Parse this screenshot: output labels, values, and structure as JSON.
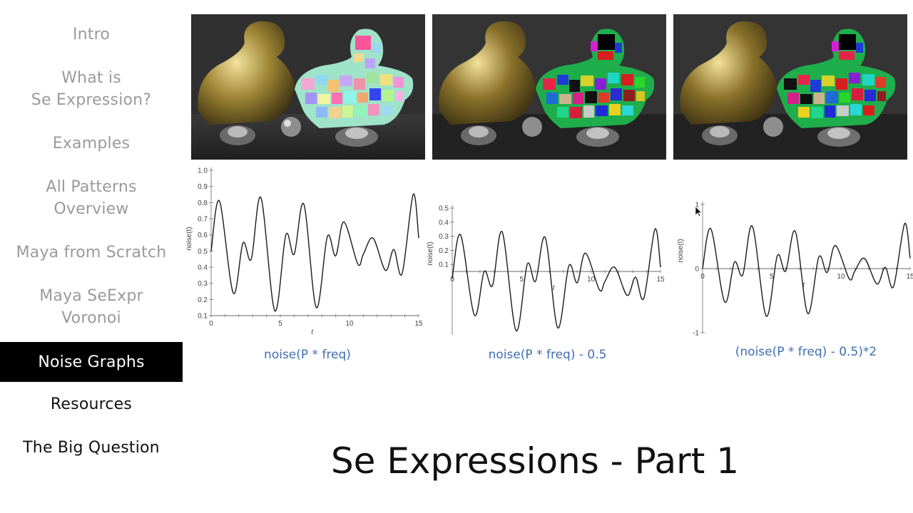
{
  "sidebar": {
    "items": [
      {
        "label_lines": [
          "Intro"
        ],
        "state": "visited"
      },
      {
        "label_lines": [
          "What is",
          "Se Expression?"
        ],
        "state": "visited"
      },
      {
        "label_lines": [
          "Examples"
        ],
        "state": "visited"
      },
      {
        "label_lines": [
          "All Patterns",
          "Overview"
        ],
        "state": "visited"
      },
      {
        "label_lines": [
          "Maya from Scratch"
        ],
        "state": "visited"
      },
      {
        "label_lines": [
          "Maya SeExpr",
          "Voronoi"
        ],
        "state": "visited"
      },
      {
        "label_lines": [
          "Noise Graphs"
        ],
        "state": "active"
      },
      {
        "label_lines": [
          "Resources"
        ],
        "state": "upcoming"
      },
      {
        "label_lines": [
          "The Big Question"
        ],
        "state": "upcoming"
      }
    ],
    "active_bg": "#000000",
    "visited_color": "#9a9a9a",
    "upcoming_color": "#111111"
  },
  "renders": [
    {
      "name": "render-pastel-voronoi",
      "description": "gold bust beside pastel voronoi-textured bust"
    },
    {
      "name": "render-saturated-voronoi-1",
      "description": "gold bust beside saturated voronoi-textured bust"
    },
    {
      "name": "render-saturated-voronoi-2",
      "description": "gold bust beside saturated voronoi-textured bust"
    }
  ],
  "captions": [
    "noise(P * freq)",
    "noise(P * freq) - 0.5",
    "(noise(P * freq) - 0.5)*2"
  ],
  "page_title": "Se Expressions - Part 1",
  "accent_color": "#3f6fb3",
  "chart_data": [
    {
      "type": "line",
      "title": "noise(P * freq)",
      "xlabel": "t",
      "ylabel": "noise(t)",
      "xlim": [
        0,
        15
      ],
      "ylim": [
        0.1,
        1.0
      ],
      "xticks": [
        "0",
        "5",
        "10",
        "15"
      ],
      "yticks": [
        "0.1",
        "0.2",
        "0.3",
        "0.4",
        "0.5",
        "0.6",
        "0.7",
        "0.8",
        "0.9",
        "1.0"
      ],
      "grid": false,
      "x": [
        0,
        0.6,
        1.6,
        2.3,
        2.9,
        3.6,
        4.6,
        5.4,
        6.0,
        6.7,
        7.6,
        8.4,
        9.0,
        9.6,
        10.6,
        11.0,
        11.7,
        12.6,
        13.2,
        13.8,
        14.6,
        15
      ],
      "values": [
        0.5,
        0.81,
        0.24,
        0.55,
        0.45,
        0.83,
        0.13,
        0.6,
        0.48,
        0.79,
        0.15,
        0.59,
        0.47,
        0.68,
        0.42,
        0.48,
        0.58,
        0.38,
        0.51,
        0.36,
        0.85,
        0.58
      ]
    },
    {
      "type": "line",
      "title": "noise(P * freq) - 0.5",
      "xlabel": "t",
      "ylabel": "noise(t)",
      "xlim": [
        0,
        15
      ],
      "ylim": [
        -0.4,
        0.5
      ],
      "xticks": [
        "0",
        "5",
        "10",
        "15"
      ],
      "yticks": [
        "0.1",
        "0.2",
        "0.3",
        "0.4",
        "0.5"
      ],
      "grid": false,
      "x": [
        0,
        0.6,
        1.6,
        2.3,
        2.9,
        3.6,
        4.6,
        5.4,
        6.0,
        6.7,
        7.6,
        8.4,
        9.0,
        9.6,
        10.6,
        11.0,
        11.7,
        12.6,
        13.2,
        13.8,
        14.6,
        15
      ],
      "values": [
        0.0,
        0.31,
        -0.26,
        0.05,
        -0.05,
        0.33,
        -0.37,
        0.1,
        -0.02,
        0.29,
        -0.35,
        0.09,
        -0.03,
        0.18,
        -0.08,
        -0.02,
        0.08,
        -0.12,
        0.01,
        -0.14,
        0.35,
        0.08
      ]
    },
    {
      "type": "line",
      "title": "(noise(P * freq) - 0.5)*2",
      "xlabel": "t",
      "ylabel": "noise(t)",
      "xlim": [
        0,
        15
      ],
      "ylim": [
        -1,
        1
      ],
      "xticks": [
        "0",
        "5",
        "10",
        "15"
      ],
      "yticks": [
        "-1",
        "0",
        "1"
      ],
      "grid": false,
      "x": [
        0,
        0.6,
        1.6,
        2.3,
        2.9,
        3.6,
        4.6,
        5.4,
        6.0,
        6.7,
        7.6,
        8.4,
        9.0,
        9.6,
        10.6,
        11.0,
        11.7,
        12.6,
        13.2,
        13.8,
        14.6,
        15
      ],
      "values": [
        0.0,
        0.62,
        -0.52,
        0.1,
        -0.1,
        0.66,
        -0.74,
        0.2,
        -0.04,
        0.58,
        -0.7,
        0.18,
        -0.06,
        0.36,
        -0.16,
        -0.04,
        0.16,
        -0.24,
        0.02,
        -0.28,
        0.7,
        0.16
      ]
    }
  ]
}
